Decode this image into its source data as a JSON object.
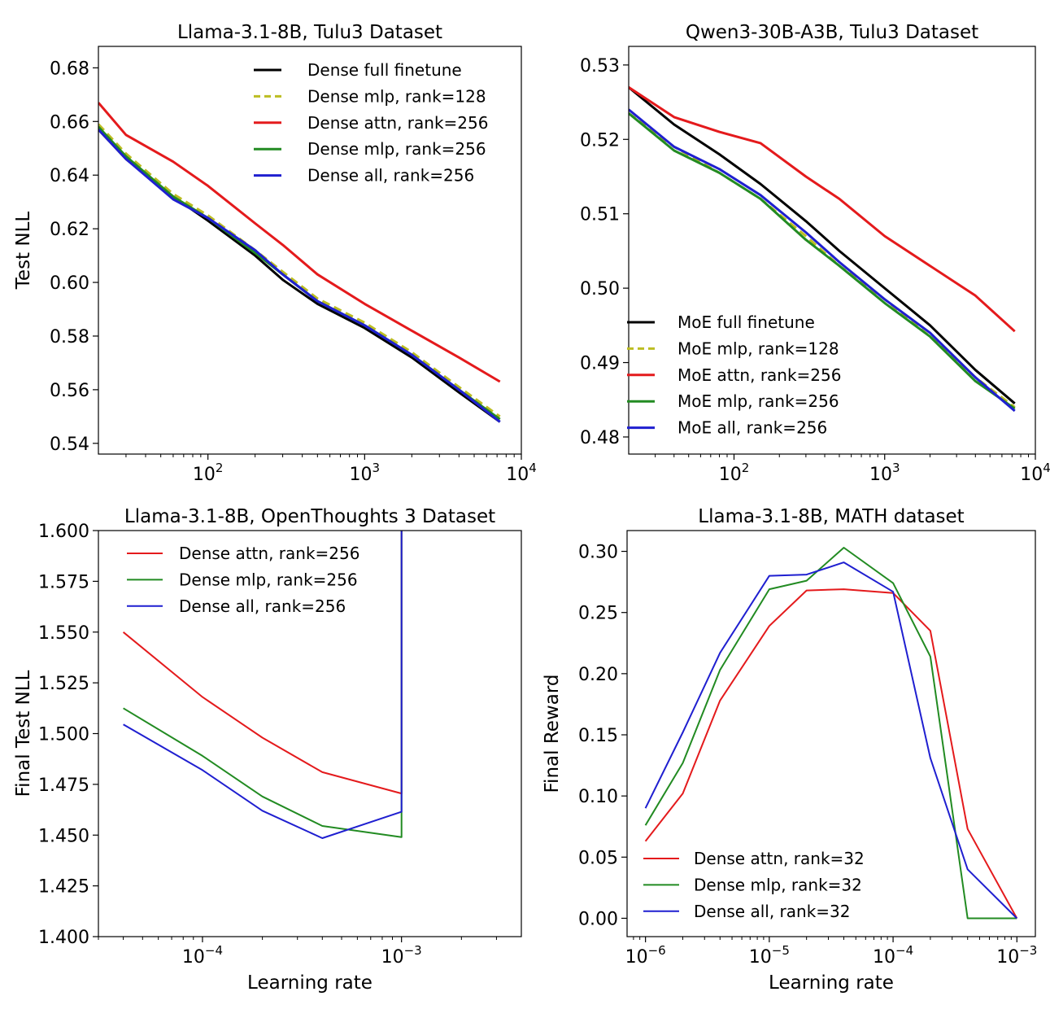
{
  "chart_data": [
    {
      "type": "line",
      "title": "Llama-3.1-8B, Tulu3 Dataset",
      "xlabel": "",
      "ylabel": "Test NLL",
      "xscale": "log",
      "xlim": [
        20,
        10000
      ],
      "ylim": [
        0.536,
        0.688
      ],
      "yticks": [
        0.54,
        0.56,
        0.58,
        0.6,
        0.62,
        0.64,
        0.66,
        0.68
      ],
      "ytick_labels": [
        "0.54",
        "0.56",
        "0.58",
        "0.60",
        "0.62",
        "0.64",
        "0.66",
        "0.68"
      ],
      "xticks": [
        100,
        1000,
        10000
      ],
      "xtick_labels": [
        [
          "10",
          "2"
        ],
        [
          "10",
          "3"
        ],
        [
          "10",
          "4"
        ]
      ],
      "legend_position": "upper-right",
      "series": [
        {
          "name": "Dense full finetune",
          "color": "#000000",
          "dash": "",
          "x": [
            20,
            30,
            60,
            100,
            200,
            300,
            500,
            1000,
            2000,
            4000,
            7300
          ],
          "y": [
            0.657,
            0.646,
            0.632,
            0.623,
            0.61,
            0.601,
            0.592,
            0.583,
            0.572,
            0.559,
            0.548
          ]
        },
        {
          "name": "Dense mlp, rank=128",
          "color": "#bcbd22",
          "dash": "10,6",
          "x": [
            20,
            30,
            60,
            100,
            200,
            300,
            500,
            1000,
            2000,
            4000,
            7300
          ],
          "y": [
            0.659,
            0.648,
            0.633,
            0.625,
            0.612,
            0.604,
            0.594,
            0.585,
            0.574,
            0.561,
            0.55
          ]
        },
        {
          "name": "Dense attn, rank=256",
          "color": "#e41a1c",
          "dash": "",
          "x": [
            20,
            30,
            60,
            100,
            200,
            300,
            500,
            1000,
            2000,
            4000,
            7300
          ],
          "y": [
            0.667,
            0.655,
            0.645,
            0.636,
            0.622,
            0.614,
            0.603,
            0.592,
            0.582,
            0.572,
            0.563
          ]
        },
        {
          "name": "Dense mlp, rank=256",
          "color": "#228b22",
          "dash": "",
          "x": [
            20,
            30,
            60,
            100,
            200,
            300,
            500,
            1000,
            2000,
            4000,
            7300
          ],
          "y": [
            0.658,
            0.647,
            0.632,
            0.624,
            0.611,
            0.603,
            0.593,
            0.584,
            0.573,
            0.56,
            0.549
          ]
        },
        {
          "name": "Dense all, rank=256",
          "color": "#1f1fd0",
          "dash": "",
          "x": [
            20,
            30,
            60,
            100,
            200,
            300,
            500,
            1000,
            2000,
            4000,
            7300
          ],
          "y": [
            0.657,
            0.646,
            0.631,
            0.624,
            0.612,
            0.603,
            0.593,
            0.584,
            0.573,
            0.56,
            0.548
          ]
        }
      ]
    },
    {
      "type": "line",
      "title": "Qwen3-30B-A3B, Tulu3 Dataset",
      "xlabel": "",
      "ylabel": "",
      "xscale": "log",
      "xlim": [
        20,
        10000
      ],
      "ylim": [
        0.4777,
        0.5325
      ],
      "yticks": [
        0.48,
        0.49,
        0.5,
        0.51,
        0.52,
        0.53
      ],
      "ytick_labels": [
        "0.48",
        "0.49",
        "0.50",
        "0.51",
        "0.52",
        "0.53"
      ],
      "xticks": [
        100,
        1000,
        10000
      ],
      "xtick_labels": [
        [
          "10",
          "2"
        ],
        [
          "10",
          "3"
        ],
        [
          "10",
          "4"
        ]
      ],
      "legend_position": "lower-left",
      "series": [
        {
          "name": "MoE full finetune",
          "color": "#000000",
          "dash": "",
          "x": [
            20,
            40,
            80,
            150,
            300,
            500,
            1000,
            2000,
            4000,
            7300
          ],
          "y": [
            0.527,
            0.522,
            0.518,
            0.514,
            0.509,
            0.505,
            0.5,
            0.495,
            0.489,
            0.4845
          ]
        },
        {
          "name": "MoE mlp, rank=128",
          "color": "#bcbd22",
          "dash": "10,6",
          "x": [
            20,
            40,
            80,
            150,
            300,
            500,
            1000,
            2000,
            4000,
            7300
          ],
          "y": [
            0.5235,
            0.519,
            0.5155,
            0.512,
            0.507,
            0.503,
            0.4985,
            0.4935,
            0.488,
            0.484
          ]
        },
        {
          "name": "MoE attn, rank=256",
          "color": "#e41a1c",
          "dash": "",
          "x": [
            20,
            40,
            80,
            150,
            300,
            500,
            1000,
            2000,
            4000,
            7300
          ],
          "y": [
            0.527,
            0.523,
            0.521,
            0.5195,
            0.515,
            0.512,
            0.507,
            0.503,
            0.499,
            0.4942
          ]
        },
        {
          "name": "MoE mlp, rank=256",
          "color": "#228b22",
          "dash": "",
          "x": [
            20,
            40,
            80,
            150,
            300,
            500,
            1000,
            2000,
            4000,
            7300
          ],
          "y": [
            0.5235,
            0.5185,
            0.5155,
            0.512,
            0.5065,
            0.503,
            0.498,
            0.4935,
            0.4875,
            0.4838
          ]
        },
        {
          "name": "MoE all, rank=256",
          "color": "#1f1fd0",
          "dash": "",
          "x": [
            20,
            40,
            80,
            150,
            300,
            500,
            1000,
            2000,
            4000,
            7300
          ],
          "y": [
            0.524,
            0.519,
            0.516,
            0.5125,
            0.5075,
            0.5035,
            0.4985,
            0.494,
            0.488,
            0.4835
          ]
        }
      ]
    },
    {
      "type": "line",
      "title": "Llama-3.1-8B, OpenThoughts 3 Dataset",
      "xlabel": "Learning rate",
      "ylabel": "Final Test NLL",
      "xscale": "log",
      "xlim": [
        3e-05,
        0.004
      ],
      "ylim": [
        1.4,
        1.6
      ],
      "yticks": [
        1.4,
        1.425,
        1.45,
        1.475,
        1.5,
        1.525,
        1.55,
        1.575,
        1.6
      ],
      "ytick_labels": [
        "1.400",
        "1.425",
        "1.450",
        "1.475",
        "1.500",
        "1.525",
        "1.550",
        "1.575",
        "1.600"
      ],
      "xticks": [
        0.0001,
        0.001
      ],
      "xtick_labels": [
        [
          "10",
          "−4"
        ],
        [
          "10",
          "−3"
        ]
      ],
      "legend_position": "upper-left",
      "series": [
        {
          "name": "Dense attn, rank=256",
          "color": "#e41a1c",
          "dash": "",
          "x": [
            4e-05,
            0.0001,
            0.0002,
            0.0004,
            0.001,
            0.001
          ],
          "y": [
            1.55,
            1.518,
            1.498,
            1.481,
            1.4705,
            1.6
          ]
        },
        {
          "name": "Dense mlp, rank=256",
          "color": "#228b22",
          "dash": "",
          "x": [
            4e-05,
            0.0001,
            0.0002,
            0.0004,
            0.001,
            0.001
          ],
          "y": [
            1.5125,
            1.489,
            1.469,
            1.4545,
            1.449,
            1.6
          ]
        },
        {
          "name": "Dense all, rank=256",
          "color": "#1f1fd0",
          "dash": "",
          "x": [
            4e-05,
            0.0001,
            0.0002,
            0.0004,
            0.001,
            0.001
          ],
          "y": [
            1.5045,
            1.482,
            1.462,
            1.4485,
            1.4615,
            1.6
          ]
        }
      ]
    },
    {
      "type": "line",
      "title": "Llama-3.1-8B, MATH dataset",
      "xlabel": "Learning rate",
      "ylabel": "Final Reward",
      "xscale": "log",
      "xlim": [
        7.1e-07,
        0.00141
      ],
      "ylim": [
        -0.015,
        0.317
      ],
      "yticks": [
        0.0,
        0.05,
        0.1,
        0.15,
        0.2,
        0.25,
        0.3
      ],
      "ytick_labels": [
        "0.00",
        "0.05",
        "0.10",
        "0.15",
        "0.20",
        "0.25",
        "0.30"
      ],
      "xticks": [
        1e-06,
        1e-05,
        0.0001,
        0.001
      ],
      "xtick_labels": [
        [
          "10",
          "−6"
        ],
        [
          "10",
          "−5"
        ],
        [
          "10",
          "−4"
        ],
        [
          "10",
          "−3"
        ]
      ],
      "legend_position": "lower-left",
      "series": [
        {
          "name": "Dense attn, rank=32",
          "color": "#e41a1c",
          "dash": "",
          "x": [
            1e-06,
            2e-06,
            4e-06,
            1e-05,
            2e-05,
            4e-05,
            0.0001,
            0.0002,
            0.0004,
            0.001
          ],
          "y": [
            0.063,
            0.102,
            0.178,
            0.239,
            0.268,
            0.269,
            0.266,
            0.235,
            0.073,
            0.0
          ]
        },
        {
          "name": "Dense mlp, rank=32",
          "color": "#228b22",
          "dash": "",
          "x": [
            1e-06,
            2e-06,
            4e-06,
            1e-05,
            2e-05,
            4e-05,
            0.0001,
            0.0002,
            0.0004,
            0.001
          ],
          "y": [
            0.076,
            0.127,
            0.203,
            0.269,
            0.276,
            0.303,
            0.274,
            0.214,
            0.0,
            0.0
          ]
        },
        {
          "name": "Dense all, rank=32",
          "color": "#1f1fd0",
          "dash": "",
          "x": [
            1e-06,
            2e-06,
            4e-06,
            1e-05,
            2e-05,
            4e-05,
            0.0001,
            0.0002,
            0.0004,
            0.001
          ],
          "y": [
            0.09,
            0.152,
            0.217,
            0.28,
            0.281,
            0.291,
            0.267,
            0.131,
            0.04,
            0.0
          ]
        }
      ]
    }
  ]
}
